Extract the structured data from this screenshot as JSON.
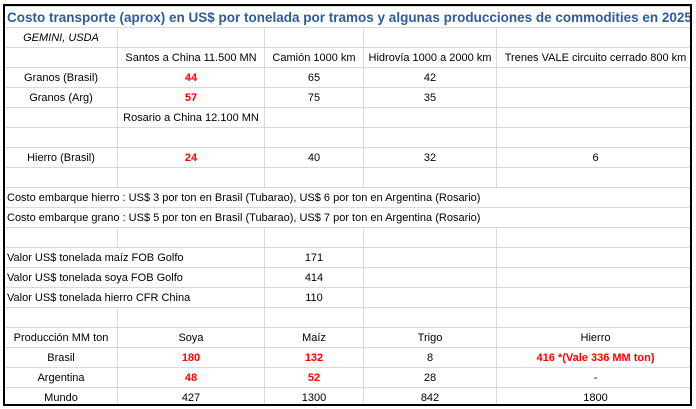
{
  "title": "Costo transporte (aprox) en US$ por tonelada por tramos y algunas producciones de commodities en 2025",
  "source": "GEMINI, USDA",
  "colors": {
    "title": "#2e5c9a",
    "highlight": "#ff0000"
  },
  "rows": [
    [
      {
        "t": "",
        "span": 1
      },
      {
        "t": "Santos a China 11.500 MN"
      },
      {
        "t": "Camión 1000 km"
      },
      {
        "t": "Hidrovía 1000 a 2000 km"
      },
      {
        "t": "Trenes VALE circuito cerrado 800 km"
      }
    ],
    [
      {
        "t": "Granos (Brasil)"
      },
      {
        "t": "44",
        "red": true
      },
      {
        "t": "65"
      },
      {
        "t": "42"
      },
      {
        "t": ""
      }
    ],
    [
      {
        "t": "Granos (Arg)"
      },
      {
        "t": "57",
        "red": true
      },
      {
        "t": "75"
      },
      {
        "t": "35"
      },
      {
        "t": ""
      }
    ],
    [
      {
        "t": ""
      },
      {
        "t": "Rosario a China 12.100 MN"
      },
      {
        "t": ""
      },
      {
        "t": ""
      },
      {
        "t": ""
      }
    ],
    [
      {
        "t": ""
      },
      {
        "t": ""
      },
      {
        "t": ""
      },
      {
        "t": ""
      },
      {
        "t": ""
      }
    ],
    [
      {
        "t": "Hierro (Brasil)"
      },
      {
        "t": "24",
        "red": true
      },
      {
        "t": "40"
      },
      {
        "t": "32"
      },
      {
        "t": "6"
      }
    ],
    [
      {
        "t": ""
      },
      {
        "t": ""
      },
      {
        "t": ""
      },
      {
        "t": ""
      },
      {
        "t": ""
      }
    ],
    [
      {
        "t": "Costo embarque hierro : US$ 3 por ton en Brasil (Tubarao), US$ 6 por ton en Argentina (Rosario)",
        "span": 5,
        "left": true
      }
    ],
    [
      {
        "t": "Costo embarque grano : US$ 5 por ton en Brasil (Tubarao), US$ 7 por ton en Argentina (Rosario)",
        "span": 5,
        "left": true
      }
    ],
    [
      {
        "t": ""
      },
      {
        "t": ""
      },
      {
        "t": ""
      },
      {
        "t": ""
      },
      {
        "t": ""
      }
    ],
    [
      {
        "t": "Valor US$ tonelada maíz FOB Golfo",
        "span": 2,
        "left": true
      },
      {
        "t": "171"
      },
      {
        "t": ""
      },
      {
        "t": ""
      }
    ],
    [
      {
        "t": "Valor US$ tonelada soya FOB Golfo",
        "span": 2,
        "left": true
      },
      {
        "t": "414"
      },
      {
        "t": ""
      },
      {
        "t": ""
      }
    ],
    [
      {
        "t": "Valor US$ tonelada hierro CFR China",
        "span": 2,
        "left": true
      },
      {
        "t": "110"
      },
      {
        "t": ""
      },
      {
        "t": ""
      }
    ],
    [
      {
        "t": ""
      },
      {
        "t": ""
      },
      {
        "t": ""
      },
      {
        "t": ""
      },
      {
        "t": ""
      }
    ],
    [
      {
        "t": "Producción MM ton"
      },
      {
        "t": "Soya"
      },
      {
        "t": "Maíz"
      },
      {
        "t": "Trigo"
      },
      {
        "t": "Hierro"
      }
    ],
    [
      {
        "t": "Brasil"
      },
      {
        "t": "180",
        "red": true
      },
      {
        "t": "132",
        "red": true
      },
      {
        "t": "8"
      },
      {
        "t": "416 *(Vale 336 MM ton)",
        "red": true
      }
    ],
    [
      {
        "t": "Argentina"
      },
      {
        "t": "48",
        "red": true
      },
      {
        "t": "52",
        "red": true
      },
      {
        "t": "28"
      },
      {
        "t": "-"
      }
    ],
    [
      {
        "t": "Mundo"
      },
      {
        "t": "427"
      },
      {
        "t": "1300"
      },
      {
        "t": "842"
      },
      {
        "t": "1800"
      }
    ]
  ]
}
